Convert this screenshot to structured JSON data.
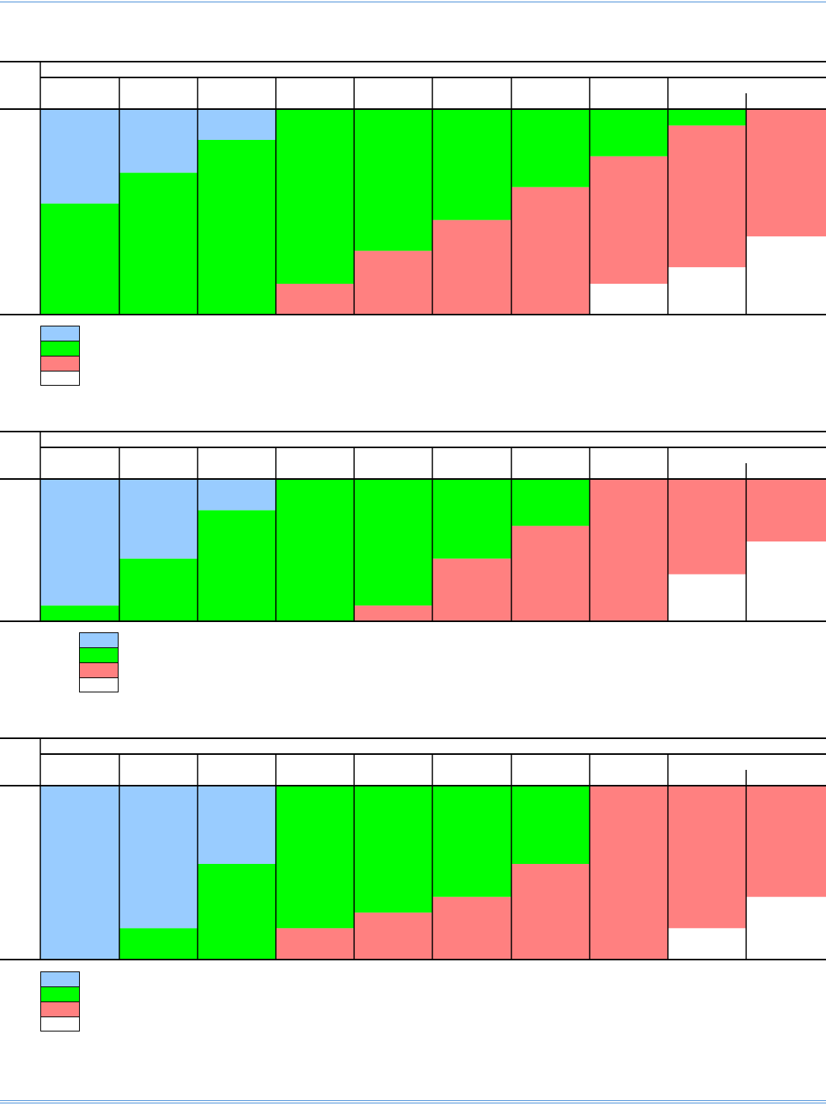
{
  "colors": {
    "blue": "#99CCFF",
    "green": "#00FF00",
    "red": "#FF8080",
    "white": "#FFFFFF",
    "rule": "#4A90D9"
  },
  "chart_data": [
    {
      "type": "bar",
      "stacked": true,
      "ylim": [
        0,
        100
      ],
      "series_colors": [
        "#99CCFF",
        "#00FF00",
        "#FF8080",
        "#FFFFFF"
      ],
      "columns": [
        [
          46,
          54,
          0,
          0
        ],
        [
          31,
          69,
          0,
          0
        ],
        [
          15,
          85,
          0,
          0
        ],
        [
          0,
          85,
          15,
          0
        ],
        [
          0,
          69,
          31,
          0
        ],
        [
          0,
          54,
          46,
          0
        ],
        [
          0,
          38,
          62,
          0
        ],
        [
          0,
          23,
          62,
          15
        ],
        [
          0,
          8,
          69,
          23
        ],
        [
          0,
          0,
          62,
          38
        ]
      ]
    },
    {
      "type": "bar",
      "stacked": true,
      "ylim": [
        0,
        100
      ],
      "series_colors": [
        "#99CCFF",
        "#00FF00",
        "#FF8080",
        "#FFFFFF"
      ],
      "columns": [
        [
          89,
          11,
          0,
          0
        ],
        [
          56,
          44,
          0,
          0
        ],
        [
          22,
          78,
          0,
          0
        ],
        [
          0,
          100,
          0,
          0
        ],
        [
          0,
          89,
          11,
          0
        ],
        [
          0,
          56,
          44,
          0
        ],
        [
          0,
          33,
          67,
          0
        ],
        [
          0,
          0,
          100,
          0
        ],
        [
          0,
          0,
          67,
          33
        ],
        [
          0,
          0,
          44,
          56
        ]
      ]
    },
    {
      "type": "bar",
      "stacked": true,
      "ylim": [
        0,
        100
      ],
      "series_colors": [
        "#99CCFF",
        "#00FF00",
        "#FF8080",
        "#FFFFFF"
      ],
      "columns": [
        [
          100,
          0,
          0,
          0
        ],
        [
          82,
          18,
          0,
          0
        ],
        [
          45,
          55,
          0,
          0
        ],
        [
          0,
          82,
          18,
          0
        ],
        [
          0,
          73,
          27,
          0
        ],
        [
          0,
          64,
          36,
          0
        ],
        [
          0,
          45,
          55,
          0
        ],
        [
          0,
          0,
          100,
          0
        ],
        [
          0,
          0,
          82,
          18
        ],
        [
          0,
          0,
          64,
          36
        ]
      ]
    }
  ]
}
